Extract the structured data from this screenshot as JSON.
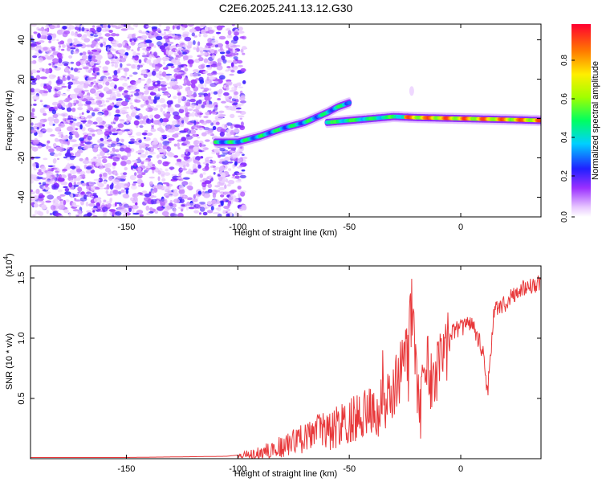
{
  "title": "C2E6.2025.241.13.12.G30",
  "spectrogram": {
    "xlabel": "Height of straight line (km)",
    "ylabel": "Frequency (Hz)",
    "xlim": [
      -193,
      36
    ],
    "ylim": [
      -50,
      48
    ],
    "xticks": [
      -150,
      -100,
      -50,
      0
    ],
    "yticks": [
      -40,
      -20,
      0,
      20,
      40
    ]
  },
  "colorbar": {
    "label": "Normalized spectral amplitude",
    "ticks": [
      "0.0",
      "0.2",
      "0.4",
      "0.6",
      "0.8"
    ],
    "range": [
      0,
      1
    ]
  },
  "snr": {
    "xlabel": "Height of straight line (km)",
    "ylabel": "SNR (10 * v/v)",
    "multiplier": "(x10",
    "multiplier_exp": "4",
    "multiplier_close": ")",
    "xticks": [
      -150,
      -100,
      -50,
      0
    ],
    "yticks": [
      "0.5",
      "1.0",
      "1.5"
    ],
    "line_color": "#e8383a"
  },
  "chart_data": [
    {
      "type": "heatmap",
      "title": "C2E6.2025.241.13.12.G30",
      "xlabel": "Height of straight line (km)",
      "ylabel": "Frequency (Hz)",
      "xlim": [
        -193,
        36
      ],
      "ylim": [
        -50,
        48
      ],
      "colormap": "rainbow (0 = white/violet, 1 = red)",
      "features": [
        {
          "name": "noise",
          "x_range": [
            -193,
            -100
          ],
          "y_range": [
            -50,
            48
          ],
          "amplitude": 0.1
        },
        {
          "name": "signal-track-1",
          "points": [
            [
              -110,
              -12
            ],
            [
              -100,
              -12
            ],
            [
              -90,
              -9
            ],
            [
              -80,
              -5
            ],
            [
              -70,
              -2
            ],
            [
              -60,
              3
            ],
            [
              -55,
              6
            ],
            [
              -50,
              8
            ]
          ],
          "amplitude": 0.4
        },
        {
          "name": "signal-track-2",
          "points": [
            [
              -60,
              -2
            ],
            [
              -50,
              -1
            ],
            [
              -40,
              0
            ],
            [
              -30,
              1
            ],
            [
              -20,
              0.5
            ],
            [
              0,
              0
            ],
            [
              20,
              -0.5
            ],
            [
              36,
              -1
            ]
          ],
          "amplitude": 0.9
        }
      ]
    },
    {
      "type": "line",
      "xlabel": "Height of straight line (km)",
      "ylabel": "SNR (10 * v/v)",
      "xlim": [
        -193,
        36
      ],
      "ylim": [
        0,
        1.6
      ],
      "y_multiplier": 10000,
      "series": [
        {
          "x": [
            -193,
            -150,
            -105,
            -100,
            -90,
            -80,
            -70,
            -65,
            -60,
            -55,
            -50,
            -45,
            -40,
            -35,
            -30,
            -28,
            -25,
            -22,
            -20,
            -18,
            -15,
            -12,
            -10,
            -5,
            0,
            5,
            10,
            12,
            15,
            20,
            25,
            30,
            36
          ],
          "values": [
            0.01,
            0.01,
            0.02,
            0.03,
            0.06,
            0.12,
            0.2,
            0.28,
            0.25,
            0.3,
            0.35,
            0.38,
            0.42,
            0.5,
            0.6,
            0.75,
            0.8,
            1.3,
            0.7,
            0.5,
            0.9,
            0.6,
            0.85,
            1.05,
            1.1,
            1.15,
            0.9,
            0.55,
            1.25,
            1.3,
            1.4,
            1.45,
            1.47
          ]
        }
      ]
    }
  ]
}
